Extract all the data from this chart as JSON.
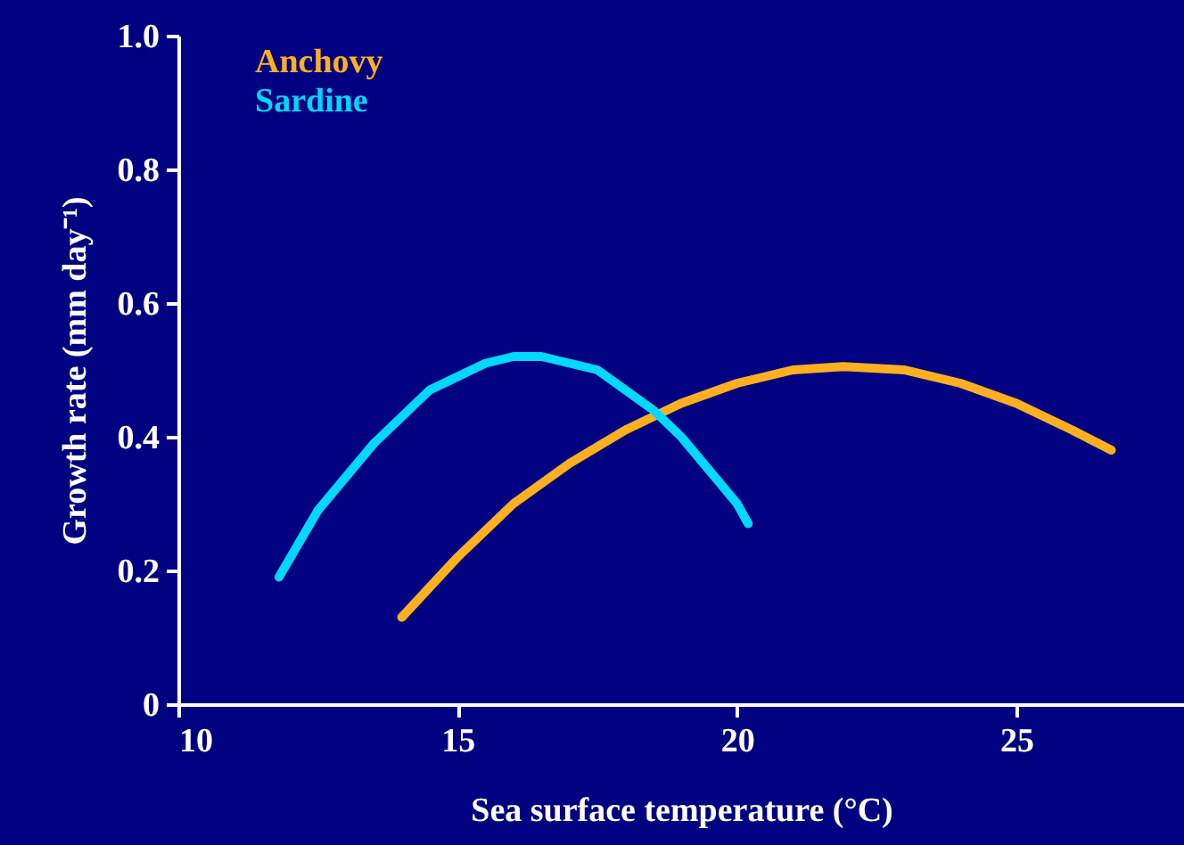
{
  "chart_data": {
    "type": "line",
    "xlabel": "Sea surface temperature (°C)",
    "ylabel": "Growth rate (mm day⁻¹)",
    "xlim": [
      10,
      28
    ],
    "xticks": [
      10,
      15,
      20,
      25
    ],
    "ylim": [
      0,
      1
    ],
    "yticks": [
      0,
      0.2,
      0.4,
      0.6,
      0.8,
      {
        "value": 1,
        "label": "1.0"
      }
    ],
    "grid": false,
    "legend": "top left",
    "marker": "none",
    "line_style": "solid",
    "series": [
      {
        "name": "Anchovy",
        "color": "#ffb020",
        "x": [
          14,
          15,
          16,
          17,
          18,
          19,
          20,
          21,
          21.9,
          23,
          24,
          25,
          26,
          26.7
        ],
        "values": [
          0.13,
          0.22,
          0.3,
          0.36,
          0.41,
          0.45,
          0.48,
          0.5,
          0.505,
          0.5,
          0.48,
          0.45,
          0.41,
          0.38
        ]
      },
      {
        "name": "Sardine",
        "color": "#00d8ff",
        "x": [
          11.8,
          12.5,
          13,
          13.5,
          14,
          14.5,
          15,
          15.5,
          16,
          16.3,
          16.5,
          17,
          17.5,
          18,
          18.5,
          19,
          19.5,
          20,
          20.2
        ],
        "values": [
          0.19,
          0.29,
          0.34,
          0.39,
          0.43,
          0.47,
          0.49,
          0.51,
          0.52,
          0.52,
          0.52,
          0.51,
          0.5,
          0.47,
          0.44,
          0.4,
          0.35,
          0.3,
          0.27
        ]
      }
    ]
  }
}
